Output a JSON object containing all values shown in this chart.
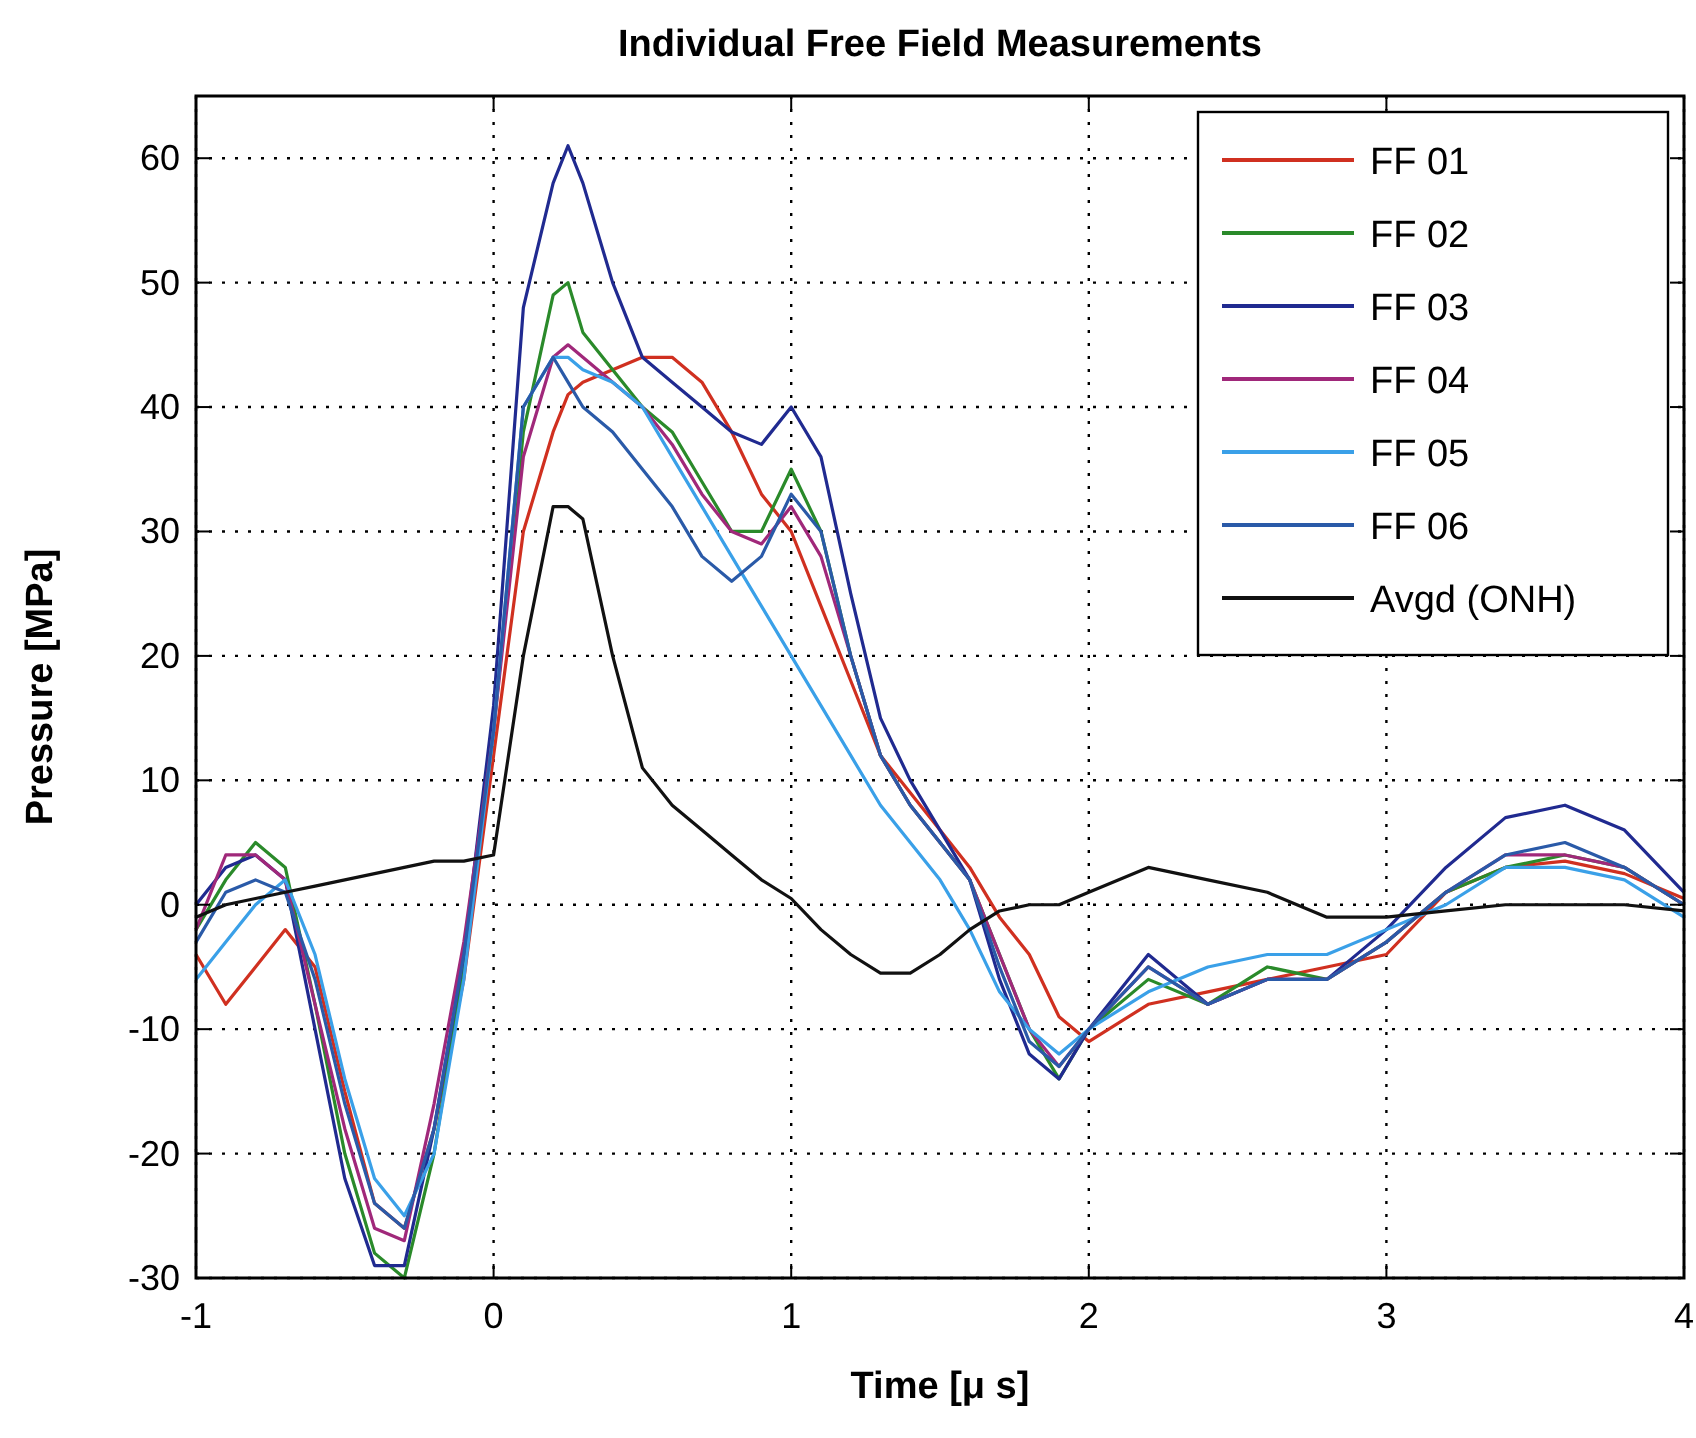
{
  "chart_data": {
    "type": "line",
    "title": "Individual Free Field Measurements",
    "xlabel": "Time [μ s]",
    "ylabel": "Pressure [MPa]",
    "x": [
      -1,
      -0.9,
      -0.8,
      -0.7,
      -0.6,
      -0.5,
      -0.4,
      -0.3,
      -0.2,
      -0.1,
      0,
      0.1,
      0.2,
      0.25,
      0.3,
      0.4,
      0.5,
      0.6,
      0.7,
      0.8,
      0.9,
      1.0,
      1.1,
      1.2,
      1.3,
      1.4,
      1.5,
      1.6,
      1.7,
      1.8,
      1.9,
      2.0,
      2.2,
      2.4,
      2.6,
      2.8,
      3.0,
      3.2,
      3.4,
      3.6,
      3.8,
      4.0
    ],
    "series": [
      {
        "name": "FF 01",
        "color": "#d03020",
        "values": [
          -4,
          -8,
          -5,
          -2,
          -5,
          -15,
          -24,
          -26,
          -18,
          -6,
          12,
          30,
          38,
          41,
          42,
          43,
          44,
          44,
          42,
          38,
          33,
          30,
          24,
          18,
          12,
          9,
          6,
          3,
          -1,
          -4,
          -9,
          -11,
          -8,
          -7,
          -6,
          -5,
          -4,
          1,
          3,
          3.5,
          2.5,
          0.5
        ]
      },
      {
        "name": "FF 02",
        "color": "#2a8a2a",
        "values": [
          -2,
          2,
          5,
          3,
          -8,
          -20,
          -28,
          -30,
          -20,
          -5,
          14,
          38,
          49,
          50,
          46,
          43,
          40,
          38,
          34,
          30,
          30,
          35,
          30,
          20,
          12,
          8,
          5,
          2,
          -4,
          -10,
          -14,
          -10,
          -6,
          -8,
          -5,
          -6,
          -3,
          1,
          3,
          4,
          3,
          0
        ]
      },
      {
        "name": "FF 03",
        "color": "#202a90",
        "values": [
          0,
          3,
          4,
          2,
          -10,
          -22,
          -29,
          -29,
          -18,
          -4,
          16,
          48,
          58,
          61,
          58,
          50,
          44,
          42,
          40,
          38,
          37,
          40,
          36,
          25,
          15,
          10,
          6,
          2,
          -6,
          -12,
          -14,
          -10,
          -4,
          -8,
          -6,
          -6,
          -2,
          3,
          7,
          8,
          6,
          1
        ]
      },
      {
        "name": "FF 04",
        "color": "#a0287a",
        "values": [
          -2,
          4,
          4,
          2,
          -8,
          -18,
          -26,
          -27,
          -16,
          -3,
          14,
          36,
          44,
          45,
          44,
          42,
          40,
          37,
          33,
          30,
          29,
          32,
          28,
          20,
          12,
          8,
          5,
          2,
          -4,
          -10,
          -13,
          -10,
          -5,
          -8,
          -6,
          -6,
          -3,
          1,
          4,
          4,
          3,
          0
        ]
      },
      {
        "name": "FF 05",
        "color": "#3aa0e8",
        "values": [
          -6,
          -3,
          0,
          2,
          -4,
          -14,
          -22,
          -25,
          -20,
          -6,
          14,
          40,
          44,
          44,
          43,
          42,
          40,
          36,
          32,
          28,
          24,
          20,
          16,
          12,
          8,
          5,
          2,
          -2,
          -7,
          -10,
          -12,
          -10,
          -7,
          -5,
          -4,
          -4,
          -2,
          0,
          3,
          3,
          2,
          -1
        ]
      },
      {
        "name": "FF 06",
        "color": "#2a5aa8",
        "values": [
          -3,
          1,
          2,
          1,
          -6,
          -16,
          -24,
          -26,
          -18,
          -4,
          14,
          40,
          44,
          42,
          40,
          38,
          35,
          32,
          28,
          26,
          28,
          33,
          30,
          20,
          12,
          8,
          5,
          2,
          -5,
          -11,
          -13,
          -10,
          -5,
          -8,
          -6,
          -6,
          -3,
          1,
          4,
          5,
          3,
          0
        ]
      },
      {
        "name": "Avgd (ONH)",
        "color": "#111111",
        "values": [
          -1,
          0,
          0.5,
          1,
          1.5,
          2,
          2.5,
          3,
          3.5,
          3.5,
          4,
          20,
          32,
          32,
          31,
          20,
          11,
          8,
          6,
          4,
          2,
          0.5,
          -2,
          -4,
          -5.5,
          -5.5,
          -4,
          -2,
          -0.5,
          0,
          0,
          1,
          3,
          2,
          1,
          -1,
          -1,
          -0.5,
          0,
          0,
          0,
          -0.5
        ]
      }
    ],
    "xlim": [
      -1,
      4
    ],
    "xticks": [
      -1,
      0,
      1,
      2,
      3,
      4
    ],
    "ylim": [
      -30,
      65
    ],
    "yticks": [
      -30,
      -20,
      -10,
      0,
      10,
      20,
      30,
      40,
      50,
      60
    ],
    "grid": true,
    "legend": "top right",
    "line_style": "solid"
  }
}
